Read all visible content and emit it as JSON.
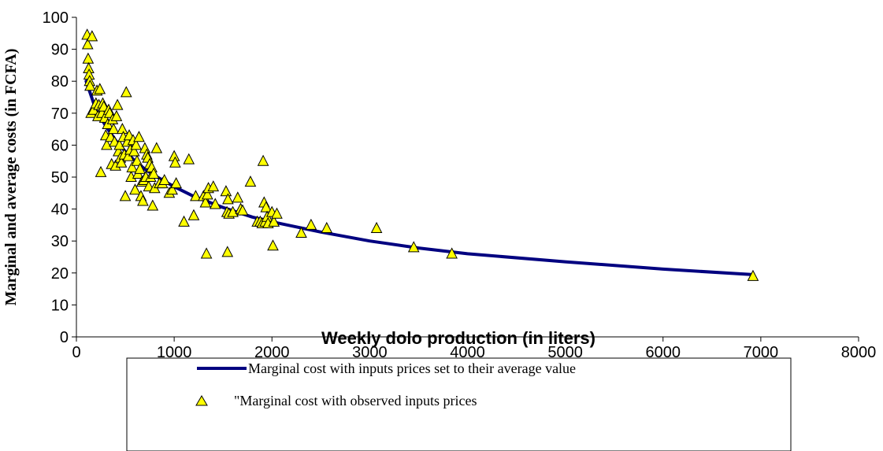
{
  "chart_data": {
    "type": "scatter",
    "title": "",
    "xlabel": "Weekly dolo production (in liters)",
    "ylabel": "Marginal and average costs (in FCFA)",
    "xlim": [
      0,
      8000
    ],
    "ylim": [
      0,
      100
    ],
    "x_ticks": [
      "0",
      "1000",
      "2000",
      "3000",
      "4000",
      "5000",
      "6000",
      "7000",
      "8000"
    ],
    "y_ticks": [
      "0",
      "10",
      "20",
      "30",
      "40",
      "50",
      "60",
      "70",
      "80",
      "90",
      "100"
    ],
    "grid": false,
    "legend_position": "bottom",
    "series": [
      {
        "name": "Marginal cost with inputs prices set to their average value",
        "type": "line",
        "color": "#000080",
        "x": [
          100,
          200,
          300,
          400,
          500,
          600,
          700,
          800,
          1000,
          1200,
          1500,
          1800,
          2000,
          2500,
          3000,
          3500,
          4000,
          5000,
          6000,
          6900
        ],
        "y": [
          80,
          71,
          66,
          61.5,
          58,
          55,
          52.5,
          50.5,
          47,
          44,
          40.5,
          37.5,
          36,
          32.8,
          30,
          27.8,
          26,
          23.5,
          21.2,
          19.5
        ]
      },
      {
        "name": "\"Marginal cost with observed inputs prices",
        "type": "scatter",
        "marker": "triangle",
        "color": "#ffff00",
        "x": [
          110,
          115,
          120,
          125,
          130,
          135,
          140,
          150,
          160,
          175,
          200,
          210,
          220,
          230,
          240,
          250,
          260,
          270,
          280,
          290,
          300,
          310,
          320,
          330,
          340,
          350,
          360,
          370,
          380,
          390,
          400,
          410,
          420,
          430,
          440,
          450,
          460,
          470,
          480,
          490,
          500,
          510,
          520,
          530,
          540,
          550,
          560,
          570,
          580,
          590,
          600,
          610,
          620,
          630,
          640,
          650,
          660,
          670,
          680,
          690,
          700,
          710,
          720,
          730,
          740,
          750,
          760,
          770,
          780,
          790,
          800,
          820,
          850,
          880,
          900,
          950,
          980,
          1000,
          1010,
          1020,
          1100,
          1150,
          1200,
          1220,
          1300,
          1320,
          1330,
          1340,
          1350,
          1400,
          1420,
          1530,
          1540,
          1545,
          1550,
          1560,
          1600,
          1650,
          1680,
          1700,
          1780,
          1850,
          1880,
          1900,
          1910,
          1920,
          1930,
          1940,
          1950,
          1960,
          2000,
          2010,
          2020,
          2050,
          2300,
          2400,
          2560,
          3070,
          3450,
          3840,
          6920
        ],
        "y": [
          94.5,
          91.5,
          87,
          84,
          82,
          80,
          78.5,
          70,
          94,
          71,
          73,
          77,
          69,
          72.5,
          77.5,
          51.5,
          70,
          73,
          72,
          68.5,
          63,
          60,
          66.5,
          71,
          70,
          62.5,
          54,
          68,
          65,
          61,
          53.5,
          69,
          72.5,
          58,
          60,
          56,
          54.5,
          65,
          62.5,
          57,
          44,
          76.5,
          61,
          56.5,
          63,
          58.5,
          50,
          53,
          61.5,
          58,
          46,
          60,
          55,
          51,
          62.5,
          52.5,
          44,
          48.5,
          42.5,
          49,
          59,
          50,
          57,
          56,
          47,
          54,
          50,
          53,
          41,
          51,
          46.5,
          59,
          48,
          48,
          49,
          45,
          46,
          56.5,
          54.5,
          48,
          36,
          55.5,
          38,
          44,
          44,
          42,
          26,
          44.5,
          46.5,
          47,
          41.5,
          45.5,
          39,
          26.5,
          43,
          38.5,
          39,
          43.5,
          40,
          39.5,
          48.5,
          36,
          36,
          35.5,
          55,
          42,
          36,
          40.5,
          37.5,
          35.5,
          39,
          28.5,
          36,
          38.5,
          32.5,
          35,
          34,
          34,
          28,
          26,
          19
        ]
      }
    ]
  }
}
